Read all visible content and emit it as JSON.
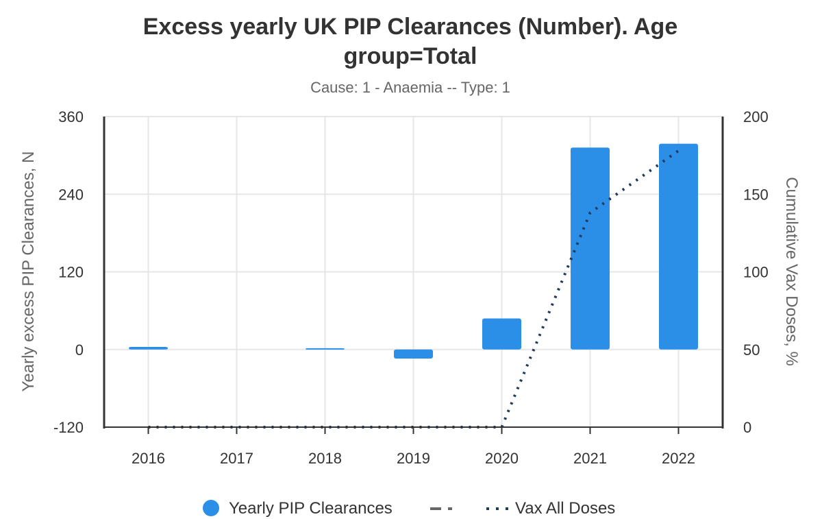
{
  "chart_data": {
    "type": "bar",
    "title_line1": "Excess yearly UK PIP Clearances (Number). Age",
    "title_line2": "group=Total",
    "subtitle": "Cause: 1 - Anaemia -- Type: 1",
    "categories": [
      "2016",
      "2017",
      "2018",
      "2019",
      "2020",
      "2021",
      "2022"
    ],
    "series": [
      {
        "name": "Yearly PIP Clearances",
        "type": "bar",
        "axis": "left",
        "color": "#2b8fe8",
        "values": [
          4,
          0,
          2,
          -14,
          48,
          312,
          318
        ]
      },
      {
        "name": "Vax All Doses",
        "type": "line",
        "style": "dotted",
        "axis": "right",
        "color": "#1f3a5a",
        "values": [
          0,
          0,
          0,
          0,
          0,
          138,
          178
        ]
      }
    ],
    "legend_extra_dash_dot": {
      "name": "",
      "color": "#666666"
    },
    "ylabel": "Yearly excess PIP Clearances, N",
    "y2label": "Cumulative Vax Doses, %",
    "ylim": [
      -120,
      360
    ],
    "yticks": [
      360,
      240,
      120,
      0,
      -120
    ],
    "y2lim": [
      0,
      200
    ],
    "y2ticks": [
      200,
      150,
      100,
      50,
      0
    ],
    "grid": true,
    "legend_position": "bottom"
  }
}
